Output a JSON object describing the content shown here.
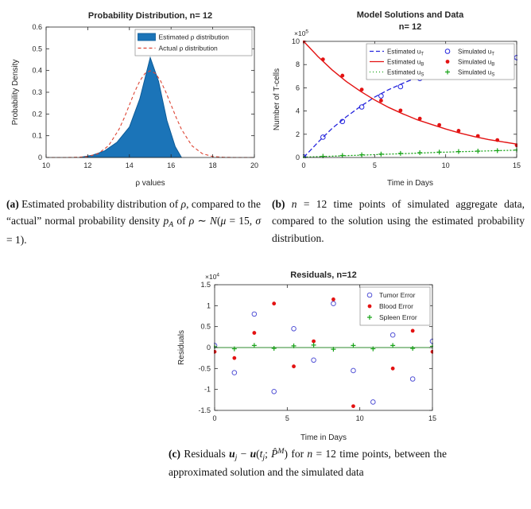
{
  "chart_data": [
    {
      "id": "a",
      "type": "area",
      "title": "Probability Distribution, n= 12",
      "xlabel": "ρ values",
      "ylabel": "Probability Density",
      "xlim": [
        10,
        20
      ],
      "ylim": [
        0,
        0.6
      ],
      "grid": false,
      "legend_position": "top-right",
      "xticks": {
        "values": [
          10,
          12,
          14,
          16,
          18,
          20
        ],
        "labels": [
          "10",
          "12",
          "14",
          "16",
          "18",
          "20"
        ]
      },
      "yticks": {
        "values": [
          0,
          0.1,
          0.2,
          0.3,
          0.4,
          0.5,
          0.6
        ],
        "labels": [
          "0",
          "0.1",
          "0.2",
          "0.3",
          "0.4",
          "0.5",
          "0.6"
        ]
      },
      "series": [
        {
          "name": "estimated-rho-distribution",
          "type": "area",
          "color": "#1b74b8",
          "edge": "#0d5b97",
          "width": 1,
          "data": [
            [
              11.6,
              0
            ],
            [
              12.2,
              0.01
            ],
            [
              12.8,
              0.03
            ],
            [
              13.4,
              0.07
            ],
            [
              14,
              0.14
            ],
            [
              14.5,
              0.27
            ],
            [
              15,
              0.46
            ],
            [
              15.4,
              0.35
            ],
            [
              15.8,
              0.17
            ],
            [
              16.2,
              0.05
            ],
            [
              16.5,
              0
            ]
          ]
        },
        {
          "name": "actual-rho-distribution",
          "type": "line",
          "color": "#dd4433",
          "width": 1.1,
          "dash": "4,3",
          "data": [
            [
              10,
              0
            ],
            [
              11,
              0.0001
            ],
            [
              11.5,
              0.001
            ],
            [
              12,
              0.0044
            ],
            [
              12.5,
              0.0175
            ],
            [
              13,
              0.054
            ],
            [
              13.5,
              0.1295
            ],
            [
              13.75,
              0.1826
            ],
            [
              14,
              0.242
            ],
            [
              14.25,
              0.3011
            ],
            [
              14.5,
              0.3521
            ],
            [
              14.75,
              0.3866
            ],
            [
              15,
              0.3989
            ],
            [
              15.25,
              0.3866
            ],
            [
              15.5,
              0.3521
            ],
            [
              15.75,
              0.3011
            ],
            [
              16,
              0.242
            ],
            [
              16.25,
              0.1826
            ],
            [
              16.5,
              0.1295
            ],
            [
              17,
              0.054
            ],
            [
              17.5,
              0.0175
            ],
            [
              18,
              0.0044
            ],
            [
              18.5,
              0.001
            ],
            [
              19,
              0.0001
            ],
            [
              20,
              0
            ]
          ]
        }
      ],
      "legend": {
        "entries": [
          {
            "label": "Estimated ρ distribution",
            "type": "patch",
            "color": "#1b74b8",
            "edge": "#0d5b97"
          },
          {
            "label": "Actual ρ distribution",
            "type": "line",
            "color": "#dd4433",
            "dash": "4,3"
          }
        ]
      }
    },
    {
      "id": "b",
      "type": "line",
      "title_lines": [
        "Model Solutions and Data",
        "n= 12"
      ],
      "xlabel": "Time in Days",
      "ylabel": "Number of T-cells",
      "exponent": {
        "base": "×10",
        "exp": "5"
      },
      "xlim": [
        0,
        15
      ],
      "ylim": [
        0,
        10
      ],
      "grid": false,
      "legend_position": "top-right",
      "xticks": {
        "values": [
          0,
          5,
          10,
          15
        ],
        "labels": [
          "0",
          "5",
          "10",
          "15"
        ]
      },
      "yticks": {
        "values": [
          0,
          2,
          4,
          6,
          8,
          10
        ],
        "labels": [
          "0",
          "2",
          "4",
          "6",
          "8",
          "10"
        ]
      },
      "series": [
        {
          "name": "estimated-uT",
          "type": "line",
          "color": "#2525dd",
          "width": 1.3,
          "dash": "6,3",
          "data": [
            [
              0,
              0
            ],
            [
              1,
              1.3
            ],
            [
              2,
              2.5
            ],
            [
              3,
              3.5
            ],
            [
              4,
              4.4
            ],
            [
              5,
              5.2
            ],
            [
              6,
              5.85
            ],
            [
              7,
              6.4
            ],
            [
              8,
              6.9
            ],
            [
              9,
              7.3
            ],
            [
              10,
              7.65
            ],
            [
              11,
              7.9
            ],
            [
              12,
              8.1
            ],
            [
              13,
              8.25
            ],
            [
              14,
              8.4
            ],
            [
              15,
              8.5
            ]
          ]
        },
        {
          "name": "estimated-uB",
          "type": "line",
          "color": "#e31212",
          "width": 1.4,
          "data": [
            [
              0,
              10
            ],
            [
              1,
              8.7
            ],
            [
              2,
              7.55
            ],
            [
              3,
              6.55
            ],
            [
              4,
              5.7
            ],
            [
              5,
              4.95
            ],
            [
              6,
              4.3
            ],
            [
              7,
              3.75
            ],
            [
              8,
              3.25
            ],
            [
              9,
              2.85
            ],
            [
              10,
              2.45
            ],
            [
              11,
              2.1
            ],
            [
              12,
              1.8
            ],
            [
              13,
              1.55
            ],
            [
              14,
              1.35
            ],
            [
              15,
              1.15
            ]
          ]
        },
        {
          "name": "estimated-uS",
          "type": "line",
          "color": "#17a317",
          "width": 1.3,
          "dash": "1,3",
          "cap": "round",
          "data": [
            [
              0,
              0.03
            ],
            [
              1.5,
              0.09
            ],
            [
              3,
              0.16
            ],
            [
              4.5,
              0.22
            ],
            [
              6,
              0.29
            ],
            [
              7.5,
              0.35
            ],
            [
              9,
              0.42
            ],
            [
              10.5,
              0.48
            ],
            [
              12,
              0.53
            ],
            [
              13.5,
              0.58
            ],
            [
              15,
              0.63
            ]
          ]
        },
        {
          "name": "simulated-uT",
          "type": "scatter",
          "marker": "circle-open",
          "color": "#2525dd",
          "data": [
            [
              0,
              0.05
            ],
            [
              1.36,
              1.75
            ],
            [
              2.73,
              3.1
            ],
            [
              4.09,
              4.35
            ],
            [
              5.45,
              5.3
            ],
            [
              6.82,
              6.1
            ],
            [
              8.18,
              6.8
            ],
            [
              9.55,
              7.35
            ],
            [
              10.91,
              7.75
            ],
            [
              12.27,
              8.05
            ],
            [
              13.64,
              8.3
            ],
            [
              15,
              8.6
            ]
          ]
        },
        {
          "name": "simulated-uB",
          "type": "scatter",
          "marker": "circle-filled",
          "color": "#e31212",
          "data": [
            [
              0,
              10
            ],
            [
              1.36,
              8.45
            ],
            [
              2.73,
              7.05
            ],
            [
              4.09,
              5.85
            ],
            [
              5.45,
              4.9
            ],
            [
              6.82,
              4.05
            ],
            [
              8.18,
              3.35
            ],
            [
              9.55,
              2.8
            ],
            [
              10.91,
              2.3
            ],
            [
              12.27,
              1.85
            ],
            [
              13.64,
              1.5
            ],
            [
              15,
              1.05
            ]
          ]
        },
        {
          "name": "simulated-uS",
          "type": "scatter",
          "marker": "plus",
          "color": "#17a317",
          "data": [
            [
              0,
              0.03
            ],
            [
              1.36,
              0.1
            ],
            [
              2.73,
              0.17
            ],
            [
              4.09,
              0.23
            ],
            [
              5.45,
              0.29
            ],
            [
              6.82,
              0.35
            ],
            [
              8.18,
              0.41
            ],
            [
              9.55,
              0.46
            ],
            [
              10.91,
              0.51
            ],
            [
              12.27,
              0.55
            ],
            [
              13.64,
              0.59
            ],
            [
              15,
              0.64
            ]
          ]
        }
      ],
      "legend": {
        "entries": [
          {
            "label": "Estimated u_T",
            "type": "line",
            "color": "#2525dd",
            "dash": "5,3"
          },
          {
            "label": "Estimated u_B",
            "type": "line",
            "color": "#e31212"
          },
          {
            "label": "Estimated u_S",
            "type": "line",
            "color": "#17a317",
            "dash": "1,3"
          },
          {
            "label": "Simulated u_T",
            "type": "marker",
            "marker": "circle-open",
            "color": "#2525dd"
          },
          {
            "label": "Simulated u_B",
            "type": "marker",
            "marker": "circle-filled",
            "color": "#e31212"
          },
          {
            "label": "Simulated u_S",
            "type": "marker",
            "marker": "plus",
            "color": "#17a317"
          }
        ]
      }
    },
    {
      "id": "c",
      "type": "scatter",
      "title": "Residuals, n=12",
      "xlabel": "Time in Days",
      "ylabel": "Residuals",
      "exponent": {
        "base": "×10",
        "exp": "4"
      },
      "xlim": [
        0,
        15
      ],
      "ylim": [
        -1.5,
        1.5
      ],
      "grid": false,
      "legend_position": "top-right",
      "xticks": {
        "values": [
          0,
          5,
          10,
          15
        ],
        "labels": [
          "0",
          "5",
          "10",
          "15"
        ]
      },
      "yticks": {
        "values": [
          -1.5,
          -1,
          -0.5,
          0,
          0.5,
          1,
          1.5
        ],
        "labels": [
          "-1.5",
          "-1",
          "-0.5",
          "0",
          "0.5",
          "1",
          "1.5"
        ]
      },
      "series": [
        {
          "name": "spleen-zero-line",
          "type": "line",
          "color": "#2e8b2e",
          "width": 1,
          "data": [
            [
              0,
              0
            ],
            [
              15,
              0
            ]
          ]
        },
        {
          "name": "tumor-error",
          "type": "scatter",
          "marker": "circle-open",
          "color": "#5353d6",
          "data": [
            [
              0,
              0.05
            ],
            [
              1.36,
              -0.6
            ],
            [
              2.73,
              0.8
            ],
            [
              4.09,
              -1.05
            ],
            [
              5.45,
              0.45
            ],
            [
              6.82,
              -0.3
            ],
            [
              8.18,
              1.05
            ],
            [
              9.55,
              -0.55
            ],
            [
              10.91,
              -1.3
            ],
            [
              12.27,
              0.3
            ],
            [
              13.64,
              -0.75
            ],
            [
              15,
              0.15
            ]
          ]
        },
        {
          "name": "blood-error",
          "type": "scatter",
          "marker": "circle-filled",
          "color": "#e31212",
          "data": [
            [
              0,
              -0.1
            ],
            [
              1.36,
              -0.25
            ],
            [
              2.73,
              0.35
            ],
            [
              4.09,
              1.05
            ],
            [
              5.45,
              -0.45
            ],
            [
              6.82,
              0.15
            ],
            [
              8.18,
              1.15
            ],
            [
              9.55,
              -1.4
            ],
            [
              10.91,
              0.6
            ],
            [
              12.27,
              -0.5
            ],
            [
              13.64,
              0.4
            ],
            [
              15,
              -0.1
            ]
          ]
        },
        {
          "name": "spleen-error",
          "type": "scatter",
          "marker": "plus",
          "color": "#17a317",
          "data": [
            [
              0,
              0.02
            ],
            [
              1.36,
              -0.03
            ],
            [
              2.73,
              0.05
            ],
            [
              4.09,
              -0.02
            ],
            [
              5.45,
              0.04
            ],
            [
              6.82,
              0.06
            ],
            [
              8.18,
              -0.04
            ],
            [
              9.55,
              0.05
            ],
            [
              10.91,
              -0.03
            ],
            [
              12.27,
              0.05
            ],
            [
              13.64,
              -0.02
            ],
            [
              15,
              0.03
            ]
          ]
        }
      ],
      "legend": {
        "entries": [
          {
            "label": "Tumor Error",
            "type": "marker",
            "marker": "circle-open",
            "color": "#5353d6"
          },
          {
            "label": "Blood Error",
            "type": "marker",
            "marker": "circle-filled",
            "color": "#e31212"
          },
          {
            "label": "Spleen Error",
            "type": "marker",
            "marker": "plus",
            "color": "#17a317"
          }
        ]
      }
    }
  ],
  "captions": {
    "a": {
      "segments": [
        {
          "t": "(a) ",
          "b": 1
        },
        {
          "t": "Estimated probability distribution of "
        },
        {
          "t": "ρ",
          "i": 1
        },
        {
          "t": ", compared to the “actual” normal probability density "
        },
        {
          "t": "p",
          "i": 1
        },
        {
          "t": "A",
          "i": 1,
          "sub": 1
        },
        {
          "t": " of "
        },
        {
          "t": "ρ",
          "i": 1
        },
        {
          "t": " ∼ "
        },
        {
          "t": "N",
          "i": 1
        },
        {
          "t": "("
        },
        {
          "t": "μ",
          "i": 1
        },
        {
          "t": " = 15, "
        },
        {
          "t": "σ",
          "i": 1
        },
        {
          "t": " = 1)."
        }
      ]
    },
    "b": {
      "segments": [
        {
          "t": "(b) ",
          "b": 1
        },
        {
          "t": "n",
          "i": 1
        },
        {
          "t": " = 12 time points of simulated aggregate data, compared to the solution using the estimated probability distribution."
        }
      ]
    },
    "c": {
      "segments": [
        {
          "t": "(c) ",
          "b": 1
        },
        {
          "t": "Residuals "
        },
        {
          "t": "u",
          "b": 1,
          "i": 1
        },
        {
          "t": "j",
          "i": 1,
          "sub": 1
        },
        {
          "t": " − "
        },
        {
          "t": "u",
          "b": 1,
          "i": 1
        },
        {
          "t": "("
        },
        {
          "t": "t",
          "i": 1
        },
        {
          "t": "j",
          "i": 1,
          "sub": 1
        },
        {
          "t": "; "
        },
        {
          "t": "P̂",
          "i": 1
        },
        {
          "t": "M",
          "i": 1,
          "sup": 1
        },
        {
          "t": ") for "
        },
        {
          "t": "n",
          "i": 1
        },
        {
          "t": " = 12 time points, between the approximated solution and the simulated data"
        }
      ]
    }
  }
}
